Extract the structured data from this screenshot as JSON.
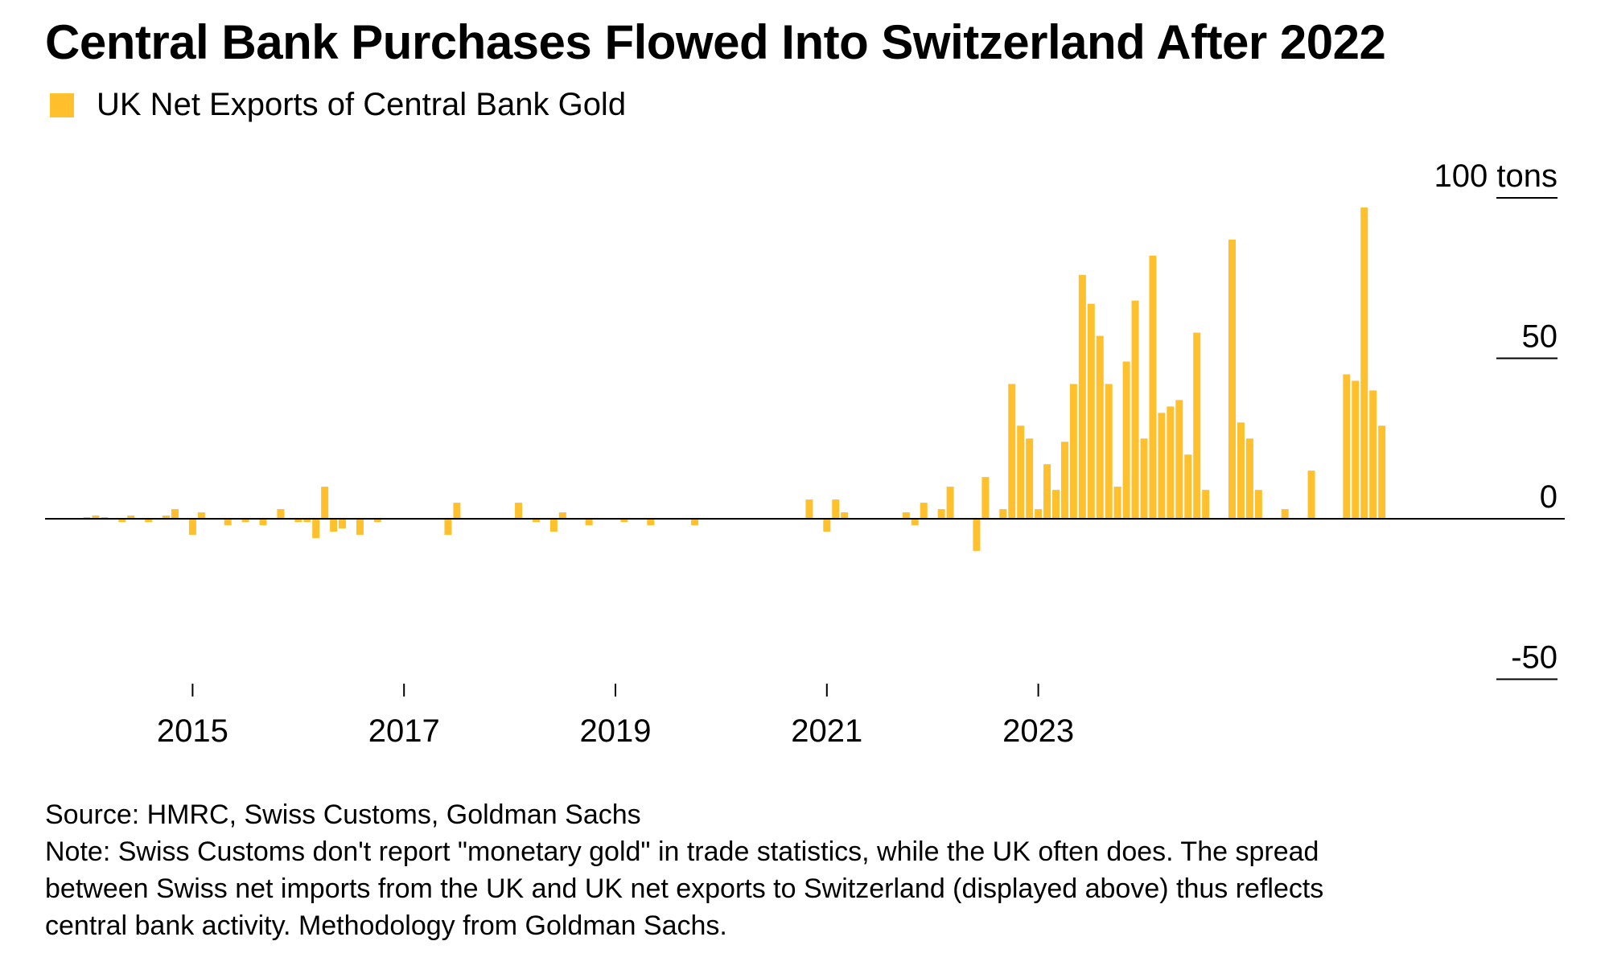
{
  "title": "Central Bank Purchases Flowed Into Switzerland After 2022",
  "legend": {
    "label": "UK Net Exports of Central Bank Gold",
    "color": "#FFC02D"
  },
  "source": "Source: HMRC, Swiss Customs, Goldman Sachs",
  "note_lines": [
    "Note: Swiss Customs don't report \"monetary gold\" in trade statistics, while the UK often does. The spread",
    "between Swiss net imports from the UK and UK net exports to Switzerland (displayed above) thus reflects",
    "central bank activity. Methodology from Goldman Sachs."
  ],
  "chart_data": {
    "type": "bar",
    "title": "Central Bank Purchases Flowed Into Switzerland After 2022",
    "series_name": "UK Net Exports of Central Bank Gold",
    "unit": "tons",
    "y_range": [
      -50,
      100
    ],
    "y_ticks": [
      {
        "value": 100,
        "label": "100 tons"
      },
      {
        "value": 50,
        "label": "50"
      },
      {
        "value": 0,
        "label": "0"
      },
      {
        "value": -50,
        "label": "-50"
      }
    ],
    "x_ticks": [
      "2015",
      "2017",
      "2019",
      "2021",
      "2023"
    ],
    "bar_color": "#FFC02D",
    "start_month": "2014-01",
    "values": [
      0.5,
      1,
      0.5,
      0,
      -1,
      1,
      0,
      -1,
      0,
      1,
      3,
      0,
      -5,
      2,
      0,
      0,
      -2,
      0,
      -1,
      0,
      -2,
      0,
      3,
      0,
      -1,
      -1,
      -6,
      10,
      -4,
      -3,
      0,
      -5,
      0,
      -1,
      0,
      0,
      0,
      0,
      0,
      0,
      0,
      -5,
      5,
      0,
      0,
      0,
      0,
      0,
      0,
      5,
      0,
      -1,
      0,
      -4,
      2,
      0,
      0,
      -2,
      0,
      0,
      0,
      -1,
      0,
      0,
      -2,
      0,
      0,
      0,
      0,
      -2,
      0,
      0,
      0,
      0,
      0,
      0,
      0,
      0,
      0,
      0,
      0,
      0,
      6,
      0,
      -4,
      6,
      2,
      0,
      0,
      0,
      0,
      0,
      0,
      2,
      -2,
      5,
      0,
      3,
      10,
      0,
      0,
      -10,
      13,
      0,
      3,
      42,
      29,
      25,
      3,
      17,
      9,
      24,
      42,
      76,
      67,
      57,
      42,
      10,
      49,
      68,
      25,
      82,
      33,
      35,
      37,
      20,
      58,
      9,
      0,
      0,
      87,
      30,
      25,
      9,
      0,
      0,
      3,
      0,
      0,
      15,
      0,
      0,
      0,
      45,
      43,
      97,
      40,
      29,
      0
    ]
  }
}
